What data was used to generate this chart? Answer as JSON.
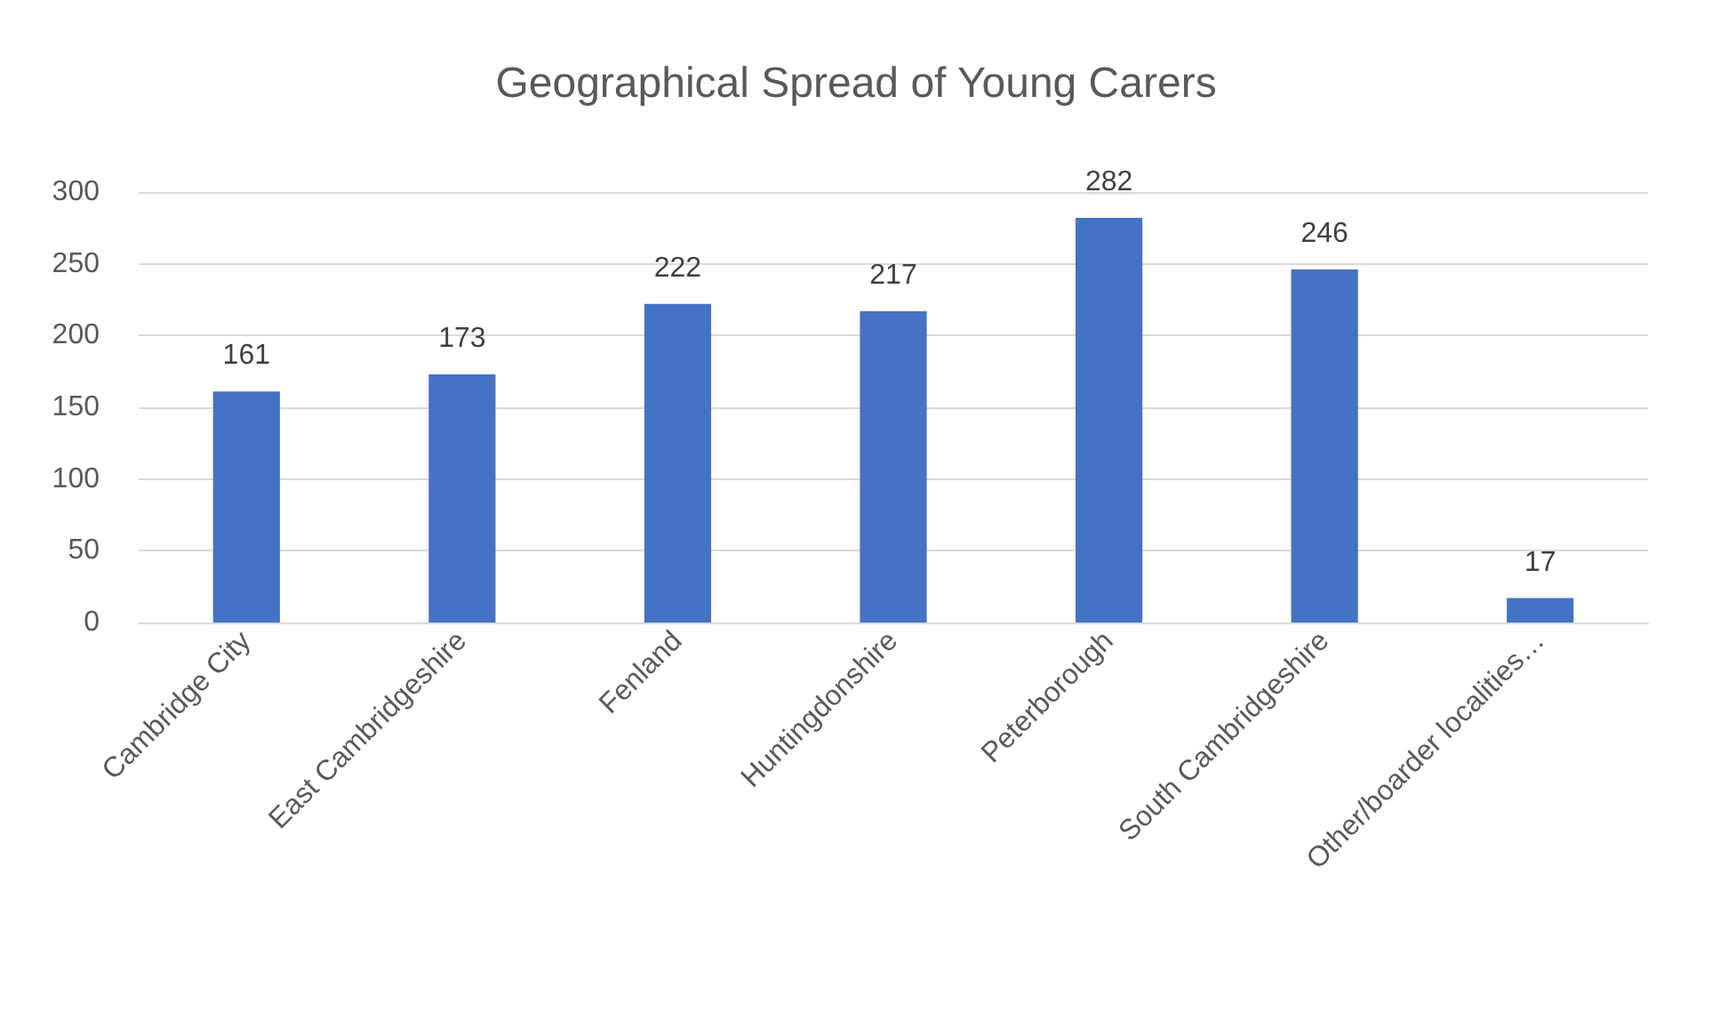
{
  "chart_data": {
    "type": "bar",
    "title": "Geographical Spread of Young Carers",
    "categories": [
      "Cambridge City",
      "East Cambridgeshire",
      "Fenland",
      "Huntingdonshire",
      "Peterborough",
      "South Cambridgeshire",
      "Other/boarder localities…"
    ],
    "values": [
      161,
      173,
      222,
      217,
      282,
      246,
      17
    ],
    "color": "#4472c4",
    "ylim": [
      0,
      300
    ],
    "yticks": [
      0,
      50,
      100,
      150,
      200,
      250,
      300
    ],
    "grid": "y",
    "data_labels": true
  }
}
